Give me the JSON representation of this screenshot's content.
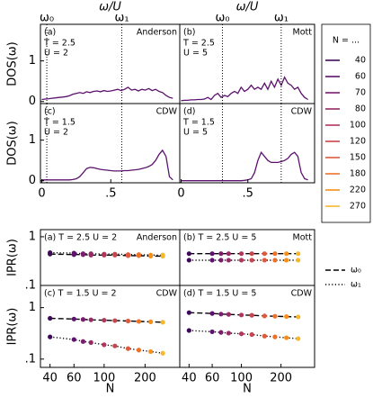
{
  "legend": {
    "title": "N = ...",
    "entries": [
      {
        "name": "40",
        "color": "#3d0a5a"
      },
      {
        "name": "60",
        "color": "#5c126e"
      },
      {
        "name": "70",
        "color": "#7a1d6d"
      },
      {
        "name": "80",
        "color": "#962a66"
      },
      {
        "name": "100",
        "color": "#b1365c"
      },
      {
        "name": "120",
        "color": "#c9454d"
      },
      {
        "name": "150",
        "color": "#dd5a3c"
      },
      {
        "name": "180",
        "color": "#ec7229"
      },
      {
        "name": "220",
        "color": "#f78e17"
      },
      {
        "name": "270",
        "color": "#f5b82e"
      }
    ]
  },
  "style_legend": {
    "entries": [
      {
        "name": "ω₀",
        "dash": "dashed"
      },
      {
        "name": "ω₁",
        "dash": "dotted"
      }
    ]
  },
  "chart_data": [
    {
      "type": "line",
      "label": "(a)",
      "notes": [
        "T = 2.5",
        "U = 2"
      ],
      "tag": "Anderson",
      "xlabel_top": "ω/U",
      "ylabel": "DOS(ω)",
      "markers": [
        {
          "value": 0.036,
          "label": "ω₀"
        },
        {
          "value": 0.58,
          "label": "ω₁"
        }
      ],
      "xlim": [
        -0.01,
        1.0
      ],
      "ylim": [
        -0.05,
        1.9
      ],
      "yticks": [
        0,
        1
      ],
      "x": [
        0,
        0.025,
        0.05,
        0.075,
        0.1,
        0.125,
        0.15,
        0.175,
        0.2,
        0.225,
        0.25,
        0.275,
        0.3,
        0.325,
        0.35,
        0.375,
        0.4,
        0.425,
        0.45,
        0.475,
        0.5,
        0.525,
        0.55,
        0.575,
        0.6,
        0.625,
        0.65,
        0.675,
        0.7,
        0.725,
        0.75,
        0.775,
        0.8,
        0.825,
        0.85,
        0.875,
        0.9,
        0.925,
        0.95
      ],
      "series": [
        {
          "color": "#5c126e",
          "values": [
            0.05,
            0.06,
            0.07,
            0.08,
            0.09,
            0.1,
            0.11,
            0.12,
            0.14,
            0.18,
            0.2,
            0.22,
            0.2,
            0.24,
            0.22,
            0.25,
            0.26,
            0.24,
            0.27,
            0.25,
            0.26,
            0.28,
            0.3,
            0.27,
            0.3,
            0.35,
            0.28,
            0.3,
            0.26,
            0.3,
            0.28,
            0.32,
            0.27,
            0.3,
            0.25,
            0.22,
            0.15,
            0.1,
            0.08
          ]
        }
      ]
    },
    {
      "type": "line",
      "label": "(b)",
      "notes": [
        "T = 2.5",
        "U = 5"
      ],
      "tag": "Mott",
      "xlabel_top": "ω/U",
      "markers": [
        {
          "value": 0.31,
          "label": "ω₀"
        },
        {
          "value": 0.75,
          "label": "ω₁"
        }
      ],
      "xlim": [
        -0.01,
        1.0
      ],
      "ylim": [
        -0.05,
        1.9
      ],
      "x": [
        0,
        0.025,
        0.05,
        0.075,
        0.1,
        0.125,
        0.15,
        0.175,
        0.2,
        0.225,
        0.25,
        0.275,
        0.3,
        0.325,
        0.35,
        0.375,
        0.4,
        0.425,
        0.45,
        0.475,
        0.5,
        0.525,
        0.55,
        0.575,
        0.6,
        0.625,
        0.65,
        0.675,
        0.7,
        0.725,
        0.75,
        0.775,
        0.8,
        0.825,
        0.85,
        0.875,
        0.9,
        0.925,
        0.95
      ],
      "series": [
        {
          "color": "#5c126e",
          "values": [
            0.02,
            0.03,
            0.03,
            0.04,
            0.04,
            0.05,
            0.05,
            0.06,
            0.1,
            0.05,
            0.15,
            0.2,
            0.1,
            0.15,
            0.12,
            0.2,
            0.25,
            0.2,
            0.35,
            0.25,
            0.3,
            0.4,
            0.3,
            0.35,
            0.3,
            0.45,
            0.3,
            0.5,
            0.35,
            0.55,
            0.4,
            0.6,
            0.45,
            0.4,
            0.3,
            0.35,
            0.2,
            0.1,
            0.05
          ]
        }
      ]
    },
    {
      "type": "line",
      "label": "(c)",
      "notes": [
        "T = 1.5",
        "U = 2"
      ],
      "tag": "CDW",
      "ylabel": "DOS(ω)",
      "vlines": [
        0.036,
        0.58
      ],
      "xlim": [
        -0.01,
        1.0
      ],
      "ylim": [
        -0.05,
        1.9
      ],
      "yticks": [
        0,
        1
      ],
      "xticks": [
        0,
        {
          "value": 0.5,
          "label": ".5"
        }
      ],
      "x": [
        0,
        0.025,
        0.05,
        0.075,
        0.1,
        0.125,
        0.15,
        0.175,
        0.2,
        0.225,
        0.25,
        0.275,
        0.3,
        0.325,
        0.35,
        0.375,
        0.4,
        0.425,
        0.45,
        0.475,
        0.5,
        0.525,
        0.55,
        0.575,
        0.6,
        0.625,
        0.65,
        0.675,
        0.7,
        0.725,
        0.75,
        0.775,
        0.8,
        0.825,
        0.85,
        0.875,
        0.9,
        0.925,
        0.95
      ],
      "series": [
        {
          "color": "#5c126e",
          "values": [
            0.02,
            0.02,
            0.02,
            0.02,
            0.02,
            0.02,
            0.02,
            0.02,
            0.02,
            0.03,
            0.05,
            0.1,
            0.2,
            0.3,
            0.33,
            0.32,
            0.3,
            0.28,
            0.27,
            0.26,
            0.25,
            0.24,
            0.24,
            0.24,
            0.25,
            0.25,
            0.26,
            0.27,
            0.28,
            0.3,
            0.32,
            0.35,
            0.4,
            0.5,
            0.65,
            0.75,
            0.6,
            0.1,
            0.02
          ]
        }
      ]
    },
    {
      "type": "line",
      "label": "(d)",
      "notes": [
        "T = 1.5",
        "U = 5"
      ],
      "tag": "CDW",
      "vlines": [
        0.31,
        0.75
      ],
      "xlim": [
        -0.01,
        1.0
      ],
      "ylim": [
        -0.05,
        1.9
      ],
      "xticks": [
        0,
        {
          "value": 0.5,
          "label": ".5"
        }
      ],
      "x": [
        0,
        0.025,
        0.05,
        0.075,
        0.1,
        0.125,
        0.15,
        0.175,
        0.2,
        0.225,
        0.25,
        0.275,
        0.3,
        0.325,
        0.35,
        0.375,
        0.4,
        0.425,
        0.45,
        0.475,
        0.5,
        0.525,
        0.55,
        0.575,
        0.6,
        0.625,
        0.65,
        0.675,
        0.7,
        0.725,
        0.75,
        0.775,
        0.8,
        0.825,
        0.85,
        0.875,
        0.9,
        0.925,
        0.95
      ],
      "series": [
        {
          "color": "#5c126e",
          "values": [
            0,
            0,
            0,
            0,
            0,
            0,
            0,
            0,
            0,
            0,
            0,
            0,
            0,
            0,
            0,
            0,
            0,
            0,
            0,
            0.01,
            0.02,
            0.05,
            0.2,
            0.5,
            0.7,
            0.6,
            0.5,
            0.45,
            0.45,
            0.45,
            0.47,
            0.5,
            0.55,
            0.65,
            0.7,
            0.6,
            0.2,
            0.05,
            0.02
          ]
        }
      ]
    },
    {
      "type": "scatter",
      "label": "(a) T = 2.5 U = 2",
      "tag": "Anderson",
      "ylabel": "IPR(ω)",
      "log": true,
      "xlim": [
        34,
        360
      ],
      "ylim": [
        0.1,
        1.4
      ],
      "yticks": [
        {
          "value": 0.1,
          "label": ".1"
        },
        1
      ],
      "x": [
        40,
        60,
        70,
        80,
        100,
        120,
        150,
        180,
        220,
        270
      ],
      "series": [
        {
          "dash": "dashed",
          "values": [
            0.44,
            0.43,
            0.43,
            0.42,
            0.42,
            0.42,
            0.41,
            0.41,
            0.4,
            0.4
          ]
        },
        {
          "dash": "dotted",
          "values": [
            0.47,
            0.46,
            0.45,
            0.45,
            0.44,
            0.44,
            0.43,
            0.43,
            0.42,
            0.42
          ]
        }
      ]
    },
    {
      "type": "scatter",
      "label": "(b) T = 2.5 U = 5",
      "tag": "Mott",
      "log": true,
      "xlim": [
        34,
        360
      ],
      "ylim": [
        0.1,
        1.4
      ],
      "x": [
        40,
        60,
        70,
        80,
        100,
        120,
        150,
        180,
        220,
        270
      ],
      "series": [
        {
          "dash": "dashed",
          "values": [
            0.45,
            0.45,
            0.45,
            0.45,
            0.45,
            0.45,
            0.45,
            0.45,
            0.45,
            0.45
          ]
        },
        {
          "dash": "dotted",
          "values": [
            0.33,
            0.33,
            0.33,
            0.33,
            0.33,
            0.33,
            0.33,
            0.33,
            0.33,
            0.33
          ]
        }
      ]
    },
    {
      "type": "scatter",
      "label": "(c) T = 1.5 U = 2",
      "tag": "CDW",
      "ylabel": "IPR(ω)",
      "xlabel": "N",
      "log": true,
      "xlim": [
        34,
        360
      ],
      "ylim": [
        0.069,
        2.7
      ],
      "yticks": [
        {
          "value": 0.1,
          "label": ".1"
        },
        1
      ],
      "xticks": [
        40,
        60,
        100,
        200
      ],
      "x": [
        40,
        60,
        70,
        80,
        100,
        120,
        150,
        180,
        220,
        270
      ],
      "series": [
        {
          "dash": "dashed",
          "values": [
            0.62,
            0.6,
            0.59,
            0.58,
            0.57,
            0.56,
            0.55,
            0.54,
            0.53,
            0.52
          ]
        },
        {
          "dash": "dotted",
          "values": [
            0.27,
            0.24,
            0.22,
            0.21,
            0.19,
            0.18,
            0.16,
            0.15,
            0.14,
            0.13
          ]
        }
      ]
    },
    {
      "type": "scatter",
      "label": "(d) T = 1.5 U = 5",
      "tag": "CDW",
      "xlabel": "N",
      "log": true,
      "xlim": [
        34,
        360
      ],
      "ylim": [
        0.069,
        2.7
      ],
      "xticks": [
        40,
        60,
        100,
        200
      ],
      "x": [
        40,
        60,
        70,
        80,
        100,
        120,
        150,
        180,
        220,
        270
      ],
      "series": [
        {
          "dash": "dashed",
          "values": [
            0.8,
            0.77,
            0.75,
            0.74,
            0.72,
            0.71,
            0.69,
            0.68,
            0.67,
            0.66
          ]
        },
        {
          "dash": "dotted",
          "values": [
            0.36,
            0.34,
            0.33,
            0.32,
            0.31,
            0.3,
            0.28,
            0.27,
            0.26,
            0.25
          ]
        }
      ]
    }
  ]
}
